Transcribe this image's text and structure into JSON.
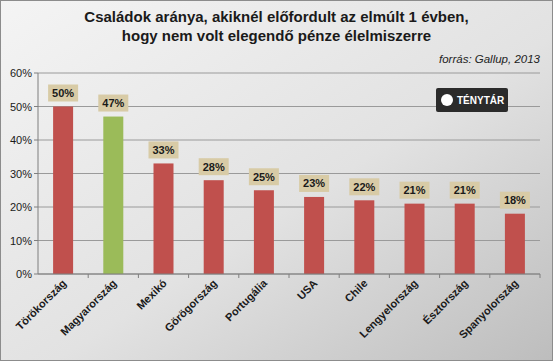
{
  "chart_data": {
    "type": "bar",
    "title": "Családok aránya, akiknél előfordult az elmúlt 1 évben,\nhogy nem volt elegendő pénze élelmiszerre",
    "subtitle": "forrás: Gallup, 2013",
    "annotations": [
      "TÉNYTÁR"
    ],
    "categories": [
      "Törökország",
      "Magyarország",
      "Mexikó",
      "Görögország",
      "Portugália",
      "USA",
      "Chile",
      "Lengyelország",
      "Észtország",
      "Spanyolország"
    ],
    "values": [
      50,
      47,
      33,
      28,
      25,
      23,
      22,
      21,
      21,
      18
    ],
    "value_labels": [
      "50%",
      "47%",
      "33%",
      "28%",
      "25%",
      "23%",
      "22%",
      "21%",
      "21%",
      "18%"
    ],
    "colors": [
      "#c0504d",
      "#9bbb59",
      "#c0504d",
      "#c0504d",
      "#c0504d",
      "#c0504d",
      "#c0504d",
      "#c0504d",
      "#c0504d",
      "#c0504d"
    ],
    "ylim": [
      0,
      60
    ],
    "yticks": [
      {
        "value": 0,
        "label": "0%"
      },
      {
        "value": 10,
        "label": "10%"
      },
      {
        "value": 20,
        "label": "20%"
      },
      {
        "value": 30,
        "label": "30%"
      },
      {
        "value": 40,
        "label": "40%"
      },
      {
        "value": 50,
        "label": "50%"
      },
      {
        "value": 60,
        "label": "60%"
      }
    ],
    "grid": true,
    "data_labels": true
  }
}
